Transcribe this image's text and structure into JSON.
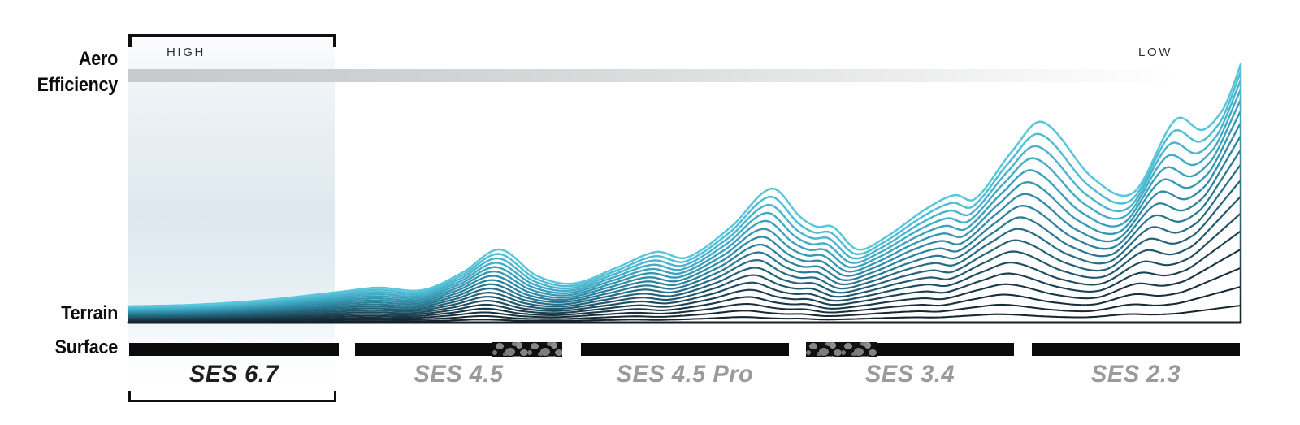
{
  "left_labels": {
    "aero_line1": "Aero",
    "aero_line2": "Efficiency",
    "terrain_line1": "Terrain",
    "terrain_line2": "Surface"
  },
  "colors": {
    "bar_black": "#0b0b0b",
    "texture_dot_gray": "#808080",
    "bracket_black": "#101010",
    "shade_blue_gray": "#dde8ee",
    "gradient_bar_gray": "#c7c9cb",
    "endcap_text": "#2f2f2f",
    "left_label_text": "#0d0d0d",
    "product_label_gray": "#9a9a9a",
    "product_label_dark": "#1e1e1e",
    "ridge_top_cyan": "#58c6dc",
    "ridge_bottom_navy": "#141f26"
  },
  "chart_data": {
    "type": "area",
    "variant": "ridgeline",
    "description": "Stacked terrain-profile ridgelines growing from flat (high aero efficiency, SES 6.7) to mountainous (low aero efficiency, SES 2.3)",
    "x_axis": {
      "label": "Aero Efficiency",
      "left_end": "HIGH",
      "right_end": "LOW"
    },
    "y_axis": {
      "label": "Terrain Surface"
    },
    "x_range": [
      158,
      1527
    ],
    "baseline_y": 397,
    "n_lines": 18,
    "amp_exponent": 1.1,
    "shear": 0.05,
    "max_envelope_height": 318,
    "envelope_points": [
      [
        158,
        20
      ],
      [
        240,
        22
      ],
      [
        330,
        28
      ],
      [
        420,
        38
      ],
      [
        465,
        43
      ],
      [
        520,
        40
      ],
      [
        570,
        62
      ],
      [
        615,
        90
      ],
      [
        660,
        58
      ],
      [
        705,
        48
      ],
      [
        760,
        68
      ],
      [
        808,
        87
      ],
      [
        845,
        80
      ],
      [
        900,
        118
      ],
      [
        950,
        165
      ],
      [
        985,
        130
      ],
      [
        1005,
        118
      ],
      [
        1025,
        118
      ],
      [
        1055,
        90
      ],
      [
        1090,
        105
      ],
      [
        1140,
        140
      ],
      [
        1175,
        157
      ],
      [
        1200,
        152
      ],
      [
        1245,
        210
      ],
      [
        1283,
        247
      ],
      [
        1345,
        178
      ],
      [
        1395,
        160
      ],
      [
        1447,
        250
      ],
      [
        1480,
        237
      ],
      [
        1505,
        262
      ],
      [
        1518,
        292
      ],
      [
        1527,
        318
      ]
    ],
    "color_stops": [
      "#141f26",
      "#1a3340",
      "#225a70",
      "#2c809b",
      "#3da5c0",
      "#58c6dc"
    ],
    "products": [
      {
        "label": "SES 6.7",
        "highlighted": true,
        "label_color": "#1e1e1e",
        "bar_x1": 159,
        "bar_x2": 417,
        "textured_x1": null,
        "textured_x2": null
      },
      {
        "label": "SES 4.5",
        "highlighted": false,
        "label_color": "#9a9a9a",
        "bar_x1": 437,
        "bar_x2": 692,
        "textured_x1": 606,
        "textured_x2": 692
      },
      {
        "label": "SES 4.5 Pro",
        "highlighted": false,
        "label_color": "#9a9a9a",
        "bar_x1": 715,
        "bar_x2": 971,
        "textured_x1": null,
        "textured_x2": null
      },
      {
        "label": "SES 3.4",
        "highlighted": false,
        "label_color": "#9a9a9a",
        "bar_x1": 992,
        "bar_x2": 1248,
        "textured_x1": 992,
        "textured_x2": 1080
      },
      {
        "label": "SES 2.3",
        "highlighted": false,
        "label_color": "#9a9a9a",
        "bar_x1": 1270,
        "bar_x2": 1526,
        "textured_x1": null,
        "textured_x2": null
      }
    ]
  }
}
